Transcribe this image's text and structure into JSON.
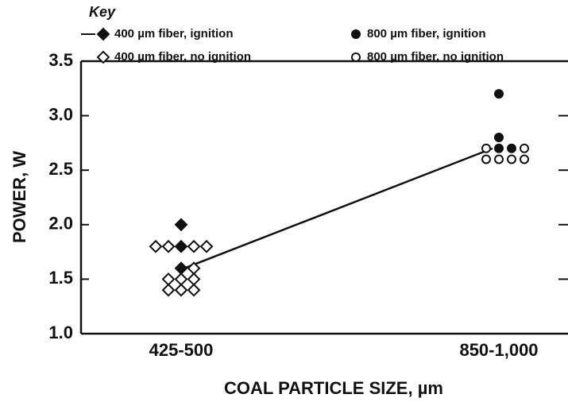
{
  "chart_data": {
    "type": "scatter",
    "legend_title": "Key",
    "xlabel": "COAL PARTICLE SIZE, µm",
    "ylabel": "POWER, W",
    "categories": [
      "425-500",
      "850-1,000"
    ],
    "ylim": [
      1.0,
      3.5
    ],
    "yticks": [
      {
        "value": 1.0,
        "label": "1.0"
      },
      1.5,
      {
        "value": 2.0,
        "label": "2.0"
      },
      2.5,
      {
        "value": 3.0,
        "label": "3.0"
      },
      3.5
    ],
    "series": [
      {
        "name": "400 µm fiber, ignition",
        "marker": "diamond",
        "filled": true,
        "color": "#111111",
        "x": [
          "425-500",
          "425-500",
          "425-500"
        ],
        "values": [
          2.0,
          1.8,
          1.6
        ]
      },
      {
        "name": "800 µm fiber, ignition",
        "marker": "circle",
        "filled": true,
        "color": "#111111",
        "x": [
          "850-1,000",
          "850-1,000",
          "850-1,000",
          "850-1,000"
        ],
        "values": [
          3.2,
          2.8,
          2.7,
          2.7
        ]
      },
      {
        "name": "400 µm fiber, no ignition",
        "marker": "diamond",
        "filled": false,
        "color": "#111111",
        "x": [
          "425-500",
          "425-500",
          "425-500",
          "425-500",
          "425-500",
          "425-500",
          "425-500",
          "425-500",
          "425-500",
          "425-500",
          "425-500"
        ],
        "values": [
          1.8,
          1.8,
          1.8,
          1.8,
          1.6,
          1.5,
          1.5,
          1.5,
          1.4,
          1.4,
          1.4
        ]
      },
      {
        "name": "800 µm fiber, no ignition",
        "marker": "circle",
        "filled": false,
        "color": "#111111",
        "x": [
          "850-1,000",
          "850-1,000",
          "850-1,000",
          "850-1,000",
          "850-1,000",
          "850-1,000"
        ],
        "values": [
          2.7,
          2.7,
          2.6,
          2.6,
          2.6,
          2.6
        ]
      }
    ],
    "trend_line": {
      "x": [
        "425-500",
        "850-1,000"
      ],
      "values": [
        1.6,
        2.7
      ]
    }
  }
}
